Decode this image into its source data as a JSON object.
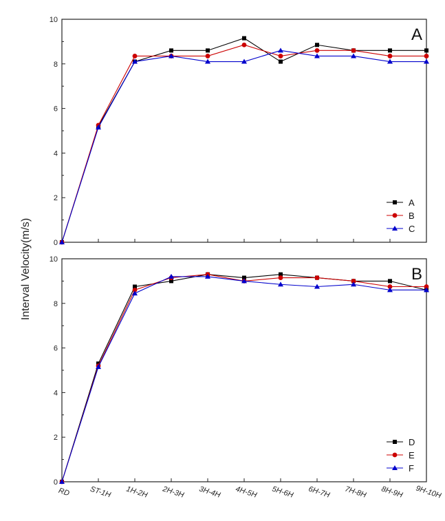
{
  "chart_data": [
    {
      "type": "line",
      "panel_label": "A",
      "categories": [
        "RD",
        "ST-1H",
        "1H-2H",
        "2H-3H",
        "3H-4H",
        "4H-5H",
        "5H-6H",
        "6H-7H",
        "7H-8H",
        "8H-9H",
        "9H-10H"
      ],
      "series": [
        {
          "name": "A",
          "color": "#000000",
          "marker": "square",
          "values": [
            0,
            5.2,
            8.1,
            8.6,
            8.6,
            9.15,
            8.1,
            8.85,
            8.6,
            8.6,
            8.6
          ]
        },
        {
          "name": "B",
          "color": "#cc0000",
          "marker": "circle",
          "values": [
            0,
            5.25,
            8.35,
            8.35,
            8.35,
            8.85,
            8.35,
            8.6,
            8.6,
            8.35,
            8.35
          ]
        },
        {
          "name": "C",
          "color": "#0000cc",
          "marker": "triangle",
          "values": [
            0,
            5.15,
            8.1,
            8.35,
            8.1,
            8.1,
            8.6,
            8.35,
            8.35,
            8.1,
            8.1
          ]
        }
      ],
      "ylim": [
        0,
        10
      ],
      "yticks": [
        "0",
        "2",
        "4",
        "6",
        "8",
        "10"
      ],
      "legend_position": "bottom-right",
      "grid": false
    },
    {
      "type": "line",
      "panel_label": "B",
      "categories": [
        "RD",
        "ST-1H",
        "1H-2H",
        "2H-3H",
        "3H-4H",
        "4H-5H",
        "5H-6H",
        "6H-7H",
        "7H-8H",
        "8H-9H",
        "9H-10H"
      ],
      "series": [
        {
          "name": "D",
          "color": "#000000",
          "marker": "square",
          "values": [
            0,
            5.3,
            8.75,
            9.0,
            9.3,
            9.15,
            9.3,
            9.15,
            9.0,
            9.0,
            8.6
          ]
        },
        {
          "name": "E",
          "color": "#cc0000",
          "marker": "circle",
          "values": [
            0,
            5.2,
            8.6,
            9.15,
            9.3,
            9.0,
            9.15,
            9.15,
            9.0,
            8.75,
            8.75
          ]
        },
        {
          "name": "F",
          "color": "#0000cc",
          "marker": "triangle",
          "values": [
            0,
            5.15,
            8.45,
            9.2,
            9.2,
            9.0,
            8.85,
            8.75,
            8.85,
            8.6,
            8.6
          ]
        }
      ],
      "ylim": [
        0,
        10
      ],
      "yticks": [
        "0",
        "2",
        "4",
        "6",
        "8",
        "10"
      ],
      "legend_position": "bottom-right",
      "grid": false
    }
  ],
  "ylabel": "Interval Velocity(m/s)"
}
